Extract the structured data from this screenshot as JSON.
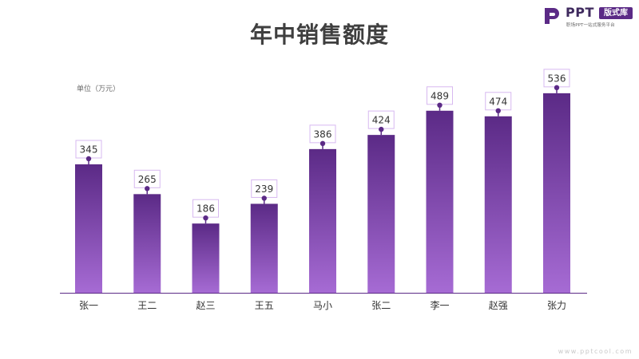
{
  "page": {
    "title": "年中销售额度",
    "unit_label": "单位（万元）",
    "watermark": "www.pptcool.com"
  },
  "logo": {
    "brand": "PPT",
    "badge": "版式库",
    "tagline": "职场PPT一站式服务平台"
  },
  "colors": {
    "bar_top": "#5b2a86",
    "bar_bottom": "#a66bd4",
    "axis": "#5b2a86",
    "label_border": "#d7b8f0",
    "marker": "#5b2a86"
  },
  "chart_data": {
    "type": "bar",
    "categories": [
      "张一",
      "王二",
      "赵三",
      "王五",
      "马小",
      "张二",
      "李一",
      "赵强",
      "张力"
    ],
    "values": [
      345,
      265,
      186,
      239,
      386,
      424,
      489,
      474,
      536
    ],
    "title": "年中销售额度",
    "xlabel": "",
    "ylabel": "单位（万元）",
    "ylim": [
      0,
      600
    ],
    "grid": false,
    "legend": "none",
    "data_labels": true
  }
}
